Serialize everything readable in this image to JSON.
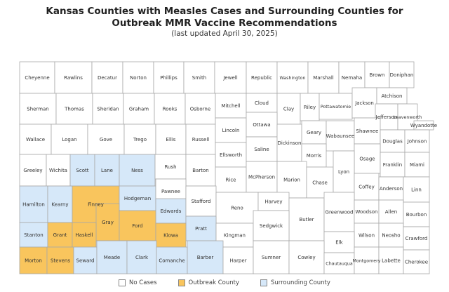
{
  "title_line1": "Kansas Counties with Measles Cases and Surrounding Counties for",
  "title_line2": "Outbreak MMR Vaccine Recommendations",
  "subtitle": "(last updated April 30, 2025)",
  "colors": {
    "none": "#ffffff",
    "outbreak": "#f9c55d",
    "surrounding": "#d6e8f9",
    "border": "#a8a8a8"
  },
  "legend": [
    {
      "label": "No Cases",
      "status": "none"
    },
    {
      "label": "Outbreak County",
      "status": "outbreak"
    },
    {
      "label": "Surrounding County",
      "status": "surrounding"
    }
  ],
  "counties": [
    {
      "name": "Cheyenne",
      "status": "none"
    },
    {
      "name": "Rawlins",
      "status": "none"
    },
    {
      "name": "Decatur",
      "status": "none"
    },
    {
      "name": "Norton",
      "status": "none"
    },
    {
      "name": "Phillips",
      "status": "none"
    },
    {
      "name": "Smith",
      "status": "none"
    },
    {
      "name": "Jewell",
      "status": "none"
    },
    {
      "name": "Republic",
      "status": "none"
    },
    {
      "name": "Washington",
      "status": "none"
    },
    {
      "name": "Marshall",
      "status": "none"
    },
    {
      "name": "Nemaha",
      "status": "none"
    },
    {
      "name": "Brown",
      "status": "none"
    },
    {
      "name": "Doniphan",
      "status": "none"
    },
    {
      "name": "Sherman",
      "status": "none"
    },
    {
      "name": "Thomas",
      "status": "none"
    },
    {
      "name": "Sheridan",
      "status": "none"
    },
    {
      "name": "Graham",
      "status": "none"
    },
    {
      "name": "Rooks",
      "status": "none"
    },
    {
      "name": "Osborne",
      "status": "none"
    },
    {
      "name": "Mitchell",
      "status": "none"
    },
    {
      "name": "Cloud",
      "status": "none"
    },
    {
      "name": "Clay",
      "status": "none"
    },
    {
      "name": "Riley",
      "status": "none"
    },
    {
      "name": "Pottawatomie",
      "status": "none"
    },
    {
      "name": "Jackson",
      "status": "none"
    },
    {
      "name": "Atchison",
      "status": "none"
    },
    {
      "name": "Jefferson",
      "status": "none"
    },
    {
      "name": "Leavenworth",
      "status": "none"
    },
    {
      "name": "Wyandotte",
      "status": "none"
    },
    {
      "name": "Wallace",
      "status": "none"
    },
    {
      "name": "Logan",
      "status": "none"
    },
    {
      "name": "Gove",
      "status": "none"
    },
    {
      "name": "Trego",
      "status": "none"
    },
    {
      "name": "Ellis",
      "status": "none"
    },
    {
      "name": "Russell",
      "status": "none"
    },
    {
      "name": "Lincoln",
      "status": "none"
    },
    {
      "name": "Ottawa",
      "status": "none"
    },
    {
      "name": "Geary",
      "status": "none"
    },
    {
      "name": "Wabaunsee",
      "status": "none"
    },
    {
      "name": "Shawnee",
      "status": "none"
    },
    {
      "name": "Douglas",
      "status": "none"
    },
    {
      "name": "Johnson",
      "status": "none"
    },
    {
      "name": "Ellsworth",
      "status": "none"
    },
    {
      "name": "Saline",
      "status": "none"
    },
    {
      "name": "Dickinson",
      "status": "none"
    },
    {
      "name": "Morris",
      "status": "none"
    },
    {
      "name": "Osage",
      "status": "none"
    },
    {
      "name": "Franklin",
      "status": "none"
    },
    {
      "name": "Miami",
      "status": "none"
    },
    {
      "name": "Greeley",
      "status": "none"
    },
    {
      "name": "Wichita",
      "status": "none"
    },
    {
      "name": "Scott",
      "status": "surrounding"
    },
    {
      "name": "Lane",
      "status": "surrounding"
    },
    {
      "name": "Ness",
      "status": "surrounding"
    },
    {
      "name": "Rush",
      "status": "none"
    },
    {
      "name": "Barton",
      "status": "none"
    },
    {
      "name": "Rice",
      "status": "none"
    },
    {
      "name": "McPherson",
      "status": "none"
    },
    {
      "name": "Marion",
      "status": "none"
    },
    {
      "name": "Chase",
      "status": "none"
    },
    {
      "name": "Lyon",
      "status": "none"
    },
    {
      "name": "Coffey",
      "status": "none"
    },
    {
      "name": "Anderson",
      "status": "none"
    },
    {
      "name": "Linn",
      "status": "none"
    },
    {
      "name": "Hamilton",
      "status": "surrounding"
    },
    {
      "name": "Kearny",
      "status": "surrounding"
    },
    {
      "name": "Finney",
      "status": "outbreak"
    },
    {
      "name": "Hodgeman",
      "status": "surrounding"
    },
    {
      "name": "Pawnee",
      "status": "none"
    },
    {
      "name": "Edwards",
      "status": "surrounding"
    },
    {
      "name": "Stafford",
      "status": "none"
    },
    {
      "name": "Reno",
      "status": "none"
    },
    {
      "name": "Harvey",
      "status": "none"
    },
    {
      "name": "Butler",
      "status": "none"
    },
    {
      "name": "Greenwood",
      "status": "none"
    },
    {
      "name": "Woodson",
      "status": "none"
    },
    {
      "name": "Allen",
      "status": "none"
    },
    {
      "name": "Bourbon",
      "status": "none"
    },
    {
      "name": "Gray",
      "status": "outbreak"
    },
    {
      "name": "Ford",
      "status": "outbreak"
    },
    {
      "name": "Pratt",
      "status": "surrounding"
    },
    {
      "name": "Kingman",
      "status": "none"
    },
    {
      "name": "Sedgwick",
      "status": "none"
    },
    {
      "name": "Wilson",
      "status": "none"
    },
    {
      "name": "Neosho",
      "status": "none"
    },
    {
      "name": "Crawford",
      "status": "none"
    },
    {
      "name": "Elk",
      "status": "none"
    },
    {
      "name": "Stanton",
      "status": "surrounding"
    },
    {
      "name": "Grant",
      "status": "outbreak"
    },
    {
      "name": "Haskell",
      "status": "outbreak"
    },
    {
      "name": "Kiowa",
      "status": "outbreak"
    },
    {
      "name": "Morton",
      "status": "outbreak"
    },
    {
      "name": "Stevens",
      "status": "outbreak"
    },
    {
      "name": "Seward",
      "status": "surrounding"
    },
    {
      "name": "Meade",
      "status": "surrounding"
    },
    {
      "name": "Clark",
      "status": "surrounding"
    },
    {
      "name": "Comanche",
      "status": "surrounding"
    },
    {
      "name": "Barber",
      "status": "surrounding"
    },
    {
      "name": "Harper",
      "status": "none"
    },
    {
      "name": "Sumner",
      "status": "none"
    },
    {
      "name": "Cowley",
      "status": "none"
    },
    {
      "name": "Chautauqua",
      "status": "none"
    },
    {
      "name": "Montgomery",
      "status": "none"
    },
    {
      "name": "Labette",
      "status": "none"
    },
    {
      "name": "Cherokee",
      "status": "none"
    }
  ]
}
